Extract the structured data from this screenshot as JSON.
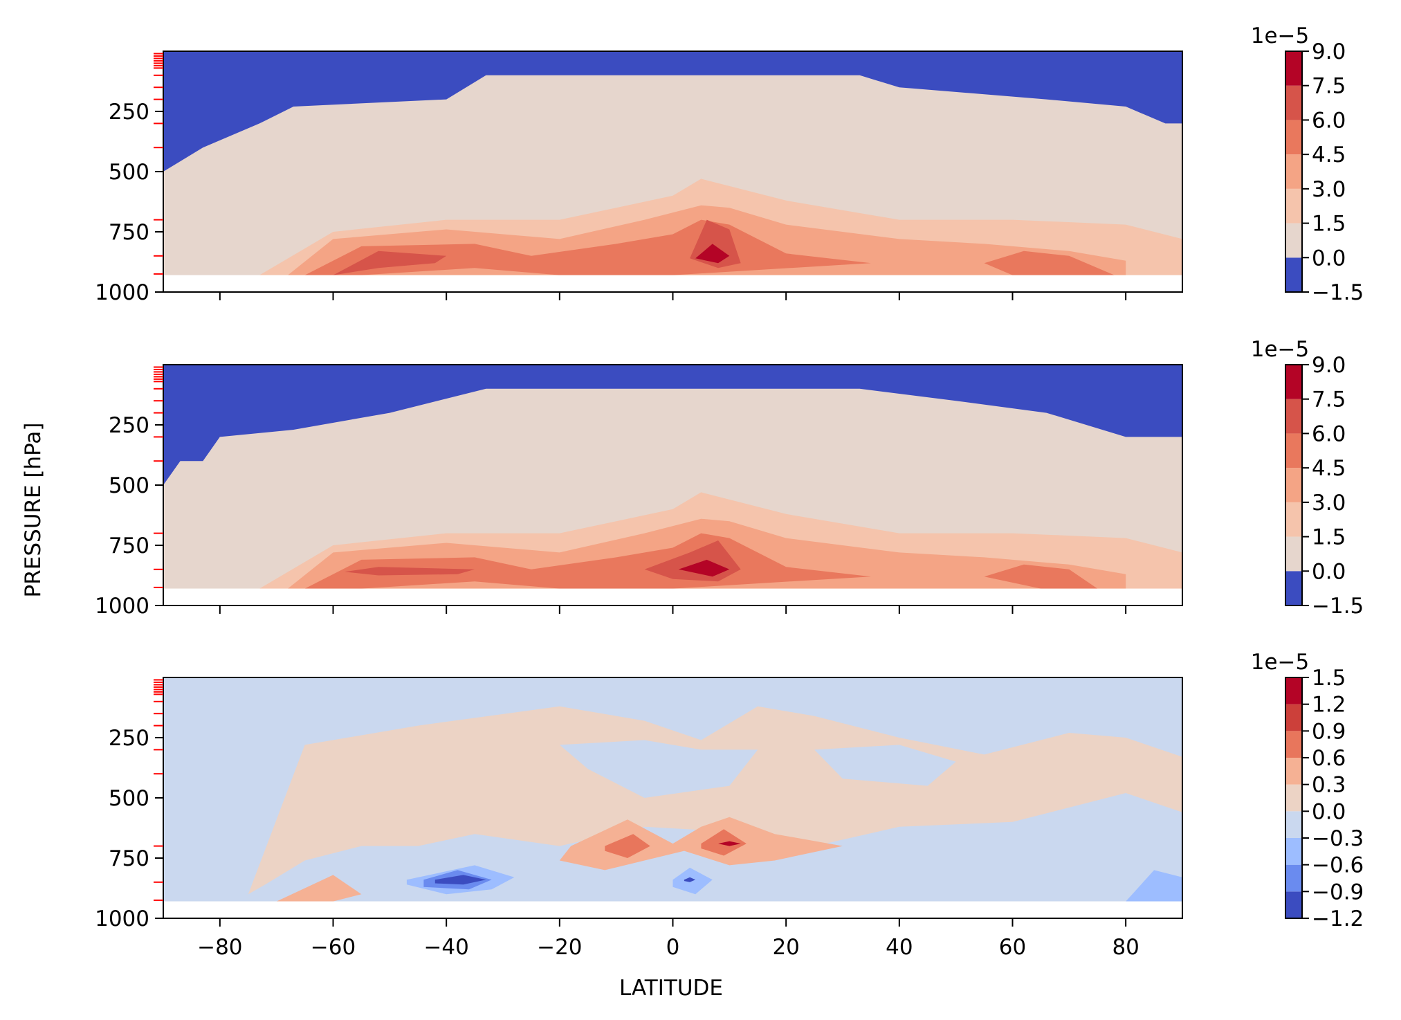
{
  "figure": {
    "ylabel": "PRESSURE [hPa]",
    "xlabel": "LATITUDE"
  },
  "chart_data": [
    {
      "type": "heatmap",
      "title": "",
      "xlabel": "",
      "ylabel": "PRESSURE [hPa]",
      "xlim": [
        -90,
        90
      ],
      "ylim": [
        1000,
        0
      ],
      "xticks": [
        "-80",
        "-60",
        "-40",
        "-20",
        "0",
        "20",
        "40",
        "60",
        "80"
      ],
      "xtick_values": [
        -80,
        -60,
        -40,
        -20,
        0,
        20,
        40,
        60,
        80
      ],
      "xtick_labels_visible": false,
      "yticks": [
        "250",
        "500",
        "750",
        "1000"
      ],
      "ytick_values": [
        250,
        500,
        750,
        1000
      ],
      "colorbar": {
        "offset_label": "1e−5",
        "levels": [
          -1.5,
          0.0,
          1.5,
          3.0,
          4.5,
          6.0,
          7.5,
          9.0
        ],
        "tick_labels": [
          "−1.5",
          "0.0",
          "1.5",
          "3.0",
          "4.5",
          "6.0",
          "7.5",
          "9.0"
        ],
        "colors": [
          "#3b4cc0",
          "#e6d6cd",
          "#f5c4ac",
          "#f4a485",
          "#e9785d",
          "#d6544a",
          "#b40426"
        ]
      },
      "regions": [
        {
          "level": 0,
          "lat_edge": [
            -90,
            -83,
            -73,
            -67,
            -40,
            -33,
            0,
            33,
            40,
            66,
            80,
            87,
            90
          ],
          "p_edge": [
            500,
            400,
            300,
            230,
            200,
            100,
            100,
            100,
            150,
            200,
            230,
            300,
            300
          ],
          "top": 0
        },
        {
          "level": 2,
          "lat": [
            -73,
            -60,
            -40,
            -20,
            -10,
            0,
            5,
            10,
            20,
            40,
            60,
            80,
            90,
            90,
            80,
            60,
            40,
            20,
            5,
            -20,
            -40,
            -60,
            -73
          ],
          "p": [
            930,
            750,
            700,
            700,
            650,
            600,
            530,
            560,
            620,
            700,
            700,
            720,
            780,
            930,
            930,
            930,
            930,
            930,
            930,
            930,
            930,
            930,
            930
          ]
        },
        {
          "level": 3,
          "lat": [
            -68,
            -60,
            -40,
            -20,
            -5,
            5,
            10,
            20,
            40,
            55,
            70,
            80,
            80,
            70,
            55,
            40,
            20,
            5,
            -20,
            -40,
            -68
          ],
          "p": [
            930,
            780,
            740,
            780,
            700,
            640,
            650,
            720,
            780,
            800,
            830,
            870,
            930,
            930,
            930,
            930,
            930,
            930,
            930,
            930,
            930
          ]
        },
        {
          "level": 4,
          "lat": [
            -65,
            -55,
            -35,
            -25,
            -10,
            0,
            5,
            10,
            20,
            35,
            0,
            -20,
            -35,
            -55,
            -65
          ],
          "p": [
            930,
            810,
            800,
            850,
            800,
            760,
            700,
            720,
            840,
            880,
            930,
            930,
            900,
            930,
            930
          ]
        },
        {
          "level": 5,
          "lat": [
            -60,
            -52,
            -40,
            -42,
            -52,
            -60
          ],
          "p": [
            930,
            830,
            850,
            880,
            900,
            930
          ]
        },
        {
          "level": 5,
          "lat": [
            3,
            6,
            10,
            12,
            8,
            3
          ],
          "p": [
            860,
            700,
            740,
            880,
            900,
            860
          ]
        },
        {
          "level": 4,
          "lat": [
            55,
            62,
            70,
            78,
            70,
            60,
            55
          ],
          "p": [
            880,
            830,
            850,
            930,
            930,
            930,
            880
          ]
        },
        {
          "level": 6,
          "lat": [
            4,
            7,
            10,
            8,
            4
          ],
          "p": [
            860,
            800,
            850,
            880,
            860
          ]
        }
      ]
    },
    {
      "type": "heatmap",
      "title": "",
      "xlabel": "",
      "ylabel": "PRESSURE [hPa]",
      "xlim": [
        -90,
        90
      ],
      "ylim": [
        1000,
        0
      ],
      "xticks": [
        "-80",
        "-60",
        "-40",
        "-20",
        "0",
        "20",
        "40",
        "60",
        "80"
      ],
      "xtick_values": [
        -80,
        -60,
        -40,
        -20,
        0,
        20,
        40,
        60,
        80
      ],
      "xtick_labels_visible": false,
      "yticks": [
        "250",
        "500",
        "750",
        "1000"
      ],
      "ytick_values": [
        250,
        500,
        750,
        1000
      ],
      "colorbar": {
        "offset_label": "1e−5",
        "levels": [
          -1.5,
          0.0,
          1.5,
          3.0,
          4.5,
          6.0,
          7.5,
          9.0
        ],
        "tick_labels": [
          "−1.5",
          "0.0",
          "1.5",
          "3.0",
          "4.5",
          "6.0",
          "7.5",
          "9.0"
        ],
        "colors": [
          "#3b4cc0",
          "#e6d6cd",
          "#f5c4ac",
          "#f4a485",
          "#e9785d",
          "#d6544a",
          "#b40426"
        ]
      },
      "regions": [
        {
          "level": 0,
          "lat_edge": [
            -90,
            -87,
            -83,
            -80,
            -67,
            -50,
            -33,
            0,
            33,
            50,
            66,
            80,
            90
          ],
          "p_edge": [
            500,
            400,
            400,
            300,
            270,
            200,
            100,
            100,
            100,
            150,
            200,
            300,
            300
          ],
          "top": 0
        },
        {
          "level": 2,
          "lat": [
            -73,
            -60,
            -40,
            -20,
            -10,
            0,
            5,
            10,
            20,
            40,
            60,
            80,
            90,
            90,
            80,
            60,
            40,
            20,
            5,
            -20,
            -40,
            -60,
            -73
          ],
          "p": [
            930,
            750,
            700,
            700,
            650,
            600,
            530,
            560,
            620,
            700,
            700,
            720,
            780,
            930,
            930,
            930,
            930,
            930,
            930,
            930,
            930,
            930,
            930
          ]
        },
        {
          "level": 3,
          "lat": [
            -68,
            -60,
            -40,
            -20,
            -5,
            5,
            10,
            20,
            40,
            55,
            70,
            80,
            80,
            70,
            55,
            40,
            20,
            5,
            -20,
            -40,
            -68
          ],
          "p": [
            930,
            780,
            740,
            780,
            700,
            640,
            650,
            720,
            780,
            800,
            830,
            870,
            930,
            930,
            930,
            930,
            930,
            930,
            930,
            930,
            930
          ]
        },
        {
          "level": 4,
          "lat": [
            -65,
            -55,
            -35,
            -25,
            -10,
            0,
            5,
            10,
            20,
            35,
            0,
            -20,
            -35,
            -55,
            -65
          ],
          "p": [
            930,
            810,
            800,
            850,
            800,
            760,
            700,
            720,
            840,
            880,
            930,
            930,
            900,
            930,
            930
          ]
        },
        {
          "level": 5,
          "lat": [
            -58,
            -52,
            -35,
            -38,
            -52,
            -58
          ],
          "p": [
            860,
            840,
            850,
            870,
            875,
            860
          ]
        },
        {
          "level": 5,
          "lat": [
            -5,
            3,
            8,
            12,
            8,
            0,
            -5
          ],
          "p": [
            850,
            780,
            730,
            850,
            900,
            890,
            850
          ]
        },
        {
          "level": 4,
          "lat": [
            55,
            62,
            70,
            75,
            65,
            55
          ],
          "p": [
            880,
            830,
            850,
            930,
            930,
            880
          ]
        },
        {
          "level": 6,
          "lat": [
            1,
            6,
            10,
            7,
            1
          ],
          "p": [
            850,
            810,
            850,
            880,
            850
          ]
        }
      ]
    },
    {
      "type": "heatmap",
      "title": "",
      "xlabel": "LATITUDE",
      "ylabel": "PRESSURE [hPa]",
      "xlim": [
        -90,
        90
      ],
      "ylim": [
        1000,
        0
      ],
      "xticks": [
        "−80",
        "−60",
        "−40",
        "−20",
        "0",
        "20",
        "40",
        "60",
        "80"
      ],
      "xtick_values": [
        -80,
        -60,
        -40,
        -20,
        0,
        20,
        40,
        60,
        80
      ],
      "xtick_labels_visible": true,
      "yticks": [
        "250",
        "500",
        "750",
        "1000"
      ],
      "ytick_values": [
        250,
        500,
        750,
        1000
      ],
      "colorbar": {
        "offset_label": "1e−5",
        "levels": [
          -1.2,
          -0.9,
          -0.6,
          -0.3,
          0.0,
          0.3,
          0.6,
          0.9,
          1.2,
          1.5
        ],
        "tick_labels": [
          "−1.2",
          "−0.9",
          "−0.6",
          "−0.3",
          "0.0",
          "0.3",
          "0.6",
          "0.9",
          "1.2",
          "1.5"
        ],
        "colors": [
          "#3b4cc0",
          "#6a8bef",
          "#9dbdff",
          "#cad8ef",
          "#ecd3c5",
          "#f5b194",
          "#e8765c",
          "#cc403a",
          "#b40426"
        ]
      },
      "regions": [
        {
          "level": 3,
          "lat": [
            -90,
            90,
            90,
            -90
          ],
          "p": [
            0,
            0,
            930,
            930
          ]
        },
        {
          "level": 4,
          "lat": [
            -75,
            -65,
            -45,
            -20,
            -5,
            5,
            15,
            25,
            40,
            55,
            70,
            80,
            90,
            90,
            80,
            60,
            40,
            25,
            10,
            -5,
            -20,
            -35,
            -45,
            -55,
            -65,
            -72
          ],
          "p": [
            900,
            280,
            200,
            120,
            180,
            260,
            120,
            160,
            250,
            320,
            230,
            250,
            330,
            560,
            480,
            600,
            620,
            700,
            640,
            620,
            700,
            650,
            700,
            700,
            760,
            860
          ]
        },
        {
          "level": 3,
          "lat": [
            -20,
            -5,
            5,
            15,
            10,
            -5,
            -15
          ],
          "p": [
            280,
            260,
            300,
            300,
            450,
            500,
            380
          ]
        },
        {
          "level": 3,
          "lat": [
            25,
            40,
            50,
            45,
            30
          ],
          "p": [
            300,
            280,
            350,
            450,
            420
          ]
        },
        {
          "level": 5,
          "lat": [
            -18,
            -8,
            0,
            5,
            10,
            18,
            30,
            18,
            10,
            2,
            -5,
            -12,
            -20
          ],
          "p": [
            700,
            590,
            690,
            620,
            580,
            650,
            700,
            760,
            780,
            720,
            760,
            800,
            760
          ]
        },
        {
          "level": 6,
          "lat": [
            -12,
            -7,
            -4,
            -8,
            -12
          ],
          "p": [
            700,
            650,
            700,
            750,
            720
          ]
        },
        {
          "level": 6,
          "lat": [
            5,
            9,
            13,
            9,
            5
          ],
          "p": [
            690,
            630,
            690,
            740,
            710
          ]
        },
        {
          "level": 8,
          "lat": [
            8,
            10,
            12,
            10,
            8
          ],
          "p": [
            690,
            680,
            690,
            700,
            690
          ]
        },
        {
          "level": 2,
          "lat": [
            -47,
            -35,
            -28,
            -32,
            -40,
            -47
          ],
          "p": [
            840,
            780,
            830,
            880,
            900,
            860
          ]
        },
        {
          "level": 1,
          "lat": [
            -44,
            -38,
            -32,
            -36,
            -44
          ],
          "p": [
            840,
            800,
            840,
            880,
            870
          ]
        },
        {
          "level": 0,
          "lat": [
            -42,
            -37,
            -33,
            -37,
            -42
          ],
          "p": [
            840,
            820,
            840,
            860,
            855
          ]
        },
        {
          "level": 2,
          "lat": [
            0,
            3,
            7,
            4,
            0
          ],
          "p": [
            840,
            790,
            840,
            900,
            870
          ]
        },
        {
          "level": 0,
          "lat": [
            2,
            3,
            4,
            3,
            2
          ],
          "p": [
            840,
            830,
            840,
            850,
            845
          ]
        },
        {
          "level": 2,
          "lat": [
            80,
            85,
            90,
            90,
            80
          ],
          "p": [
            930,
            800,
            830,
            930,
            930
          ]
        },
        {
          "level": 5,
          "lat": [
            -70,
            -60,
            -55,
            -60,
            -70
          ],
          "p": [
            930,
            820,
            900,
            930,
            930
          ]
        }
      ]
    }
  ]
}
